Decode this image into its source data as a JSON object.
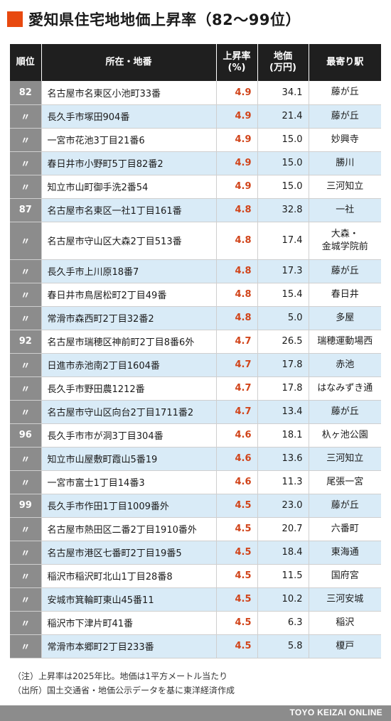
{
  "title": "愛知県住宅地地価上昇率（82〜99位）",
  "headers": {
    "rank": "順位",
    "address": "所在・地番",
    "rate_line1": "上昇率",
    "rate_line2": "(%)",
    "price_line1": "地価",
    "price_line2": "(万円)",
    "station": "最寄り駅"
  },
  "rows": [
    {
      "rank": "82",
      "address": "名古屋市名東区小池町33番",
      "rate": "4.9",
      "price": "34.1",
      "station": "藤が丘"
    },
    {
      "rank": "〃",
      "address": "長久手市塚田904番",
      "rate": "4.9",
      "price": "21.4",
      "station": "藤が丘"
    },
    {
      "rank": "〃",
      "address": "一宮市花池3丁目21番6",
      "rate": "4.9",
      "price": "15.0",
      "station": "妙興寺"
    },
    {
      "rank": "〃",
      "address": "春日井市小野町5丁目82番2",
      "rate": "4.9",
      "price": "15.0",
      "station": "勝川"
    },
    {
      "rank": "〃",
      "address": "知立市山町御手洗2番54",
      "rate": "4.9",
      "price": "15.0",
      "station": "三河知立"
    },
    {
      "rank": "87",
      "address": "名古屋市名東区一社1丁目161番",
      "rate": "4.8",
      "price": "32.8",
      "station": "一社"
    },
    {
      "rank": "〃",
      "address": "名古屋市守山区大森2丁目513番",
      "rate": "4.8",
      "price": "17.4",
      "station": "大森・",
      "station2": "金城学院前"
    },
    {
      "rank": "〃",
      "address": "長久手市上川原18番7",
      "rate": "4.8",
      "price": "17.3",
      "station": "藤が丘"
    },
    {
      "rank": "〃",
      "address": "春日井市鳥居松町2丁目49番",
      "rate": "4.8",
      "price": "15.4",
      "station": "春日井"
    },
    {
      "rank": "〃",
      "address": "常滑市森西町2丁目32番2",
      "rate": "4.8",
      "price": "5.0",
      "station": "多屋"
    },
    {
      "rank": "92",
      "address": "名古屋市瑞穂区神前町2丁目8番6外",
      "rate": "4.7",
      "price": "26.5",
      "station": "瑞穂運動場西"
    },
    {
      "rank": "〃",
      "address": "日進市赤池南2丁目1604番",
      "rate": "4.7",
      "price": "17.8",
      "station": "赤池"
    },
    {
      "rank": "〃",
      "address": "長久手市野田農1212番",
      "rate": "4.7",
      "price": "17.8",
      "station": "はなみずき通"
    },
    {
      "rank": "〃",
      "address": "名古屋市守山区向台2丁目1711番2",
      "rate": "4.7",
      "price": "13.4",
      "station": "藤が丘"
    },
    {
      "rank": "96",
      "address": "長久手市市が洞3丁目304番",
      "rate": "4.6",
      "price": "18.1",
      "station": "杁ヶ池公園"
    },
    {
      "rank": "〃",
      "address": "知立市山屋敷町霞山5番19",
      "rate": "4.6",
      "price": "13.6",
      "station": "三河知立"
    },
    {
      "rank": "〃",
      "address": "一宮市富士1丁目14番3",
      "rate": "4.6",
      "price": "11.3",
      "station": "尾張一宮"
    },
    {
      "rank": "99",
      "address": "長久手市作田1丁目1009番外",
      "rate": "4.5",
      "price": "23.0",
      "station": "藤が丘"
    },
    {
      "rank": "〃",
      "address": "名古屋市熱田区二番2丁目1910番外",
      "rate": "4.5",
      "price": "20.7",
      "station": "六番町"
    },
    {
      "rank": "〃",
      "address": "名古屋市港区七番町2丁目19番5",
      "rate": "4.5",
      "price": "18.4",
      "station": "東海通"
    },
    {
      "rank": "〃",
      "address": "稲沢市稲沢町北山1丁目28番8",
      "rate": "4.5",
      "price": "11.5",
      "station": "国府宮"
    },
    {
      "rank": "〃",
      "address": "安城市箕輪町東山45番11",
      "rate": "4.5",
      "price": "10.2",
      "station": "三河安城"
    },
    {
      "rank": "〃",
      "address": "稲沢市下津片町41番",
      "rate": "4.5",
      "price": "6.3",
      "station": "稲沢"
    },
    {
      "rank": "〃",
      "address": "常滑市本郷町2丁目233番",
      "rate": "4.5",
      "price": "5.8",
      "station": "榎戸"
    }
  ],
  "notes": {
    "note1": "（注）上昇率は2025年比。地価は1平方メートル当たり",
    "note2": "（出所）国土交通省・地価公示データを基に東洋経済作成"
  },
  "footer": "TOYO KEIZAI ONLINE",
  "colors": {
    "accent": "#e8490f",
    "rate_text": "#d1441a",
    "header_bg": "#1f1f1f",
    "rank_bg": "#8c8c8c",
    "stripe": "#d9ebf7"
  }
}
